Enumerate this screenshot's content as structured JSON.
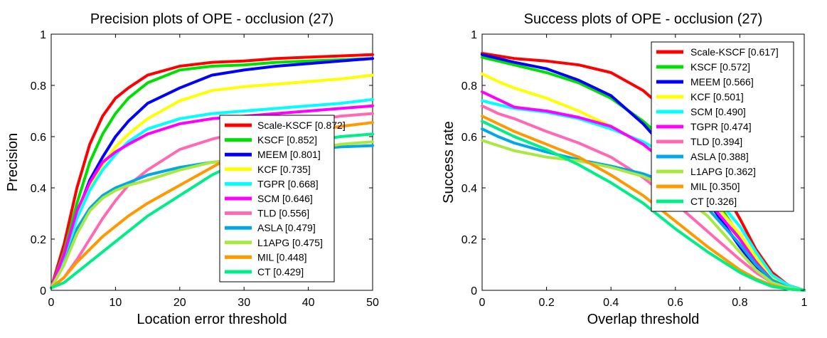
{
  "chart_data": [
    {
      "type": "line",
      "title": "Precision plots of OPE - occlusion (27)",
      "xlabel": "Location error threshold",
      "ylabel": "Precision",
      "xlim": [
        0,
        50
      ],
      "ylim": [
        0,
        1
      ],
      "xticks": [
        0,
        10,
        20,
        30,
        40,
        50
      ],
      "yticks": [
        0,
        0.2,
        0.4,
        0.6,
        0.8,
        1
      ],
      "x": [
        0,
        2,
        4,
        6,
        8,
        10,
        12,
        15,
        20,
        25,
        30,
        35,
        40,
        45,
        50
      ],
      "legend_position": "middle-right",
      "grid": false,
      "series": [
        {
          "name": "Scale-KSCF [0.872]",
          "color": "#ff0000",
          "values": [
            0.01,
            0.18,
            0.4,
            0.57,
            0.68,
            0.75,
            0.79,
            0.84,
            0.875,
            0.89,
            0.895,
            0.905,
            0.91,
            0.915,
            0.92
          ]
        },
        {
          "name": "KSCF [0.852]",
          "color": "#00e000",
          "values": [
            0.01,
            0.15,
            0.34,
            0.5,
            0.61,
            0.69,
            0.75,
            0.81,
            0.86,
            0.875,
            0.88,
            0.89,
            0.895,
            0.9,
            0.905
          ]
        },
        {
          "name": "MEEM [0.801]",
          "color": "#0000ff",
          "values": [
            0.01,
            0.14,
            0.3,
            0.43,
            0.52,
            0.6,
            0.66,
            0.73,
            0.79,
            0.84,
            0.86,
            0.875,
            0.885,
            0.895,
            0.905
          ]
        },
        {
          "name": "KCF [0.735]",
          "color": "#ffff00",
          "values": [
            0.01,
            0.14,
            0.3,
            0.41,
            0.49,
            0.56,
            0.61,
            0.67,
            0.74,
            0.78,
            0.795,
            0.805,
            0.815,
            0.825,
            0.84
          ]
        },
        {
          "name": "TGPR [0.668]",
          "color": "#00ffff",
          "values": [
            0.01,
            0.13,
            0.28,
            0.39,
            0.47,
            0.53,
            0.58,
            0.63,
            0.67,
            0.69,
            0.7,
            0.71,
            0.72,
            0.73,
            0.745
          ]
        },
        {
          "name": "SCM [0.646]",
          "color": "#ff00ff",
          "values": [
            0.01,
            0.14,
            0.31,
            0.42,
            0.5,
            0.54,
            0.57,
            0.61,
            0.65,
            0.67,
            0.68,
            0.69,
            0.7,
            0.71,
            0.72
          ]
        },
        {
          "name": "TLD [0.556]",
          "color": "#ff69b4",
          "values": [
            0.01,
            0.05,
            0.12,
            0.2,
            0.28,
            0.35,
            0.41,
            0.47,
            0.55,
            0.59,
            0.62,
            0.64,
            0.66,
            0.68,
            0.69
          ]
        },
        {
          "name": "ASLA [0.479]",
          "color": "#00a8e8",
          "values": [
            0.01,
            0.1,
            0.24,
            0.32,
            0.37,
            0.4,
            0.42,
            0.45,
            0.48,
            0.5,
            0.51,
            0.53,
            0.55,
            0.56,
            0.565
          ]
        },
        {
          "name": "L1APG [0.475]",
          "color": "#a8e840",
          "values": [
            0.01,
            0.1,
            0.22,
            0.31,
            0.36,
            0.39,
            0.41,
            0.43,
            0.47,
            0.5,
            0.51,
            0.53,
            0.55,
            0.57,
            0.58
          ]
        },
        {
          "name": "MIL [0.448]",
          "color": "#ff9900",
          "values": [
            0.01,
            0.05,
            0.11,
            0.16,
            0.21,
            0.25,
            0.29,
            0.34,
            0.41,
            0.48,
            0.55,
            0.59,
            0.62,
            0.64,
            0.655
          ]
        },
        {
          "name": "CT [0.429]",
          "color": "#00ee88",
          "values": [
            0.01,
            0.03,
            0.07,
            0.11,
            0.15,
            0.19,
            0.23,
            0.29,
            0.37,
            0.45,
            0.51,
            0.55,
            0.58,
            0.6,
            0.61
          ]
        }
      ]
    },
    {
      "type": "line",
      "title": "Success plots of OPE - occlusion (27)",
      "xlabel": "Overlap threshold",
      "ylabel": "Success rate",
      "xlim": [
        0,
        1
      ],
      "ylim": [
        0,
        1
      ],
      "xticks": [
        0,
        0.2,
        0.4,
        0.6,
        0.8,
        1
      ],
      "yticks": [
        0,
        0.2,
        0.4,
        0.6,
        0.8,
        1
      ],
      "x": [
        0,
        0.05,
        0.1,
        0.2,
        0.3,
        0.4,
        0.5,
        0.6,
        0.7,
        0.8,
        0.85,
        0.9,
        0.95,
        1.0
      ],
      "legend_position": "top-right",
      "grid": false,
      "series": [
        {
          "name": "Scale-KSCF [0.617]",
          "color": "#ff0000",
          "values": [
            0.925,
            0.915,
            0.905,
            0.895,
            0.88,
            0.85,
            0.78,
            0.67,
            0.5,
            0.28,
            0.16,
            0.07,
            0.02,
            0.0
          ]
        },
        {
          "name": "KSCF [0.572]",
          "color": "#00e000",
          "values": [
            0.91,
            0.895,
            0.88,
            0.85,
            0.81,
            0.75,
            0.66,
            0.55,
            0.4,
            0.21,
            0.12,
            0.05,
            0.015,
            0.0
          ]
        },
        {
          "name": "MEEM [0.566]",
          "color": "#0000ff",
          "values": [
            0.92,
            0.905,
            0.89,
            0.865,
            0.82,
            0.76,
            0.65,
            0.51,
            0.35,
            0.17,
            0.09,
            0.035,
            0.01,
            0.0
          ]
        },
        {
          "name": "KCF [0.501]",
          "color": "#ffff00",
          "values": [
            0.845,
            0.815,
            0.79,
            0.75,
            0.7,
            0.64,
            0.57,
            0.48,
            0.37,
            0.22,
            0.13,
            0.05,
            0.015,
            0.0
          ]
        },
        {
          "name": "SCM [0.490]",
          "color": "#00ffff",
          "values": [
            0.74,
            0.725,
            0.71,
            0.695,
            0.67,
            0.63,
            0.58,
            0.51,
            0.4,
            0.25,
            0.15,
            0.06,
            0.02,
            0.0
          ]
        },
        {
          "name": "TGPR [0.474]",
          "color": "#ff00ff",
          "values": [
            0.775,
            0.745,
            0.715,
            0.7,
            0.675,
            0.64,
            0.57,
            0.47,
            0.35,
            0.2,
            0.11,
            0.04,
            0.01,
            0.0
          ]
        },
        {
          "name": "TLD [0.394]",
          "color": "#ff69b4",
          "values": [
            0.72,
            0.69,
            0.67,
            0.62,
            0.575,
            0.52,
            0.44,
            0.34,
            0.23,
            0.12,
            0.07,
            0.03,
            0.01,
            0.0
          ]
        },
        {
          "name": "ASLA [0.388]",
          "color": "#00a8e8",
          "values": [
            0.63,
            0.6,
            0.575,
            0.54,
            0.51,
            0.485,
            0.455,
            0.41,
            0.32,
            0.18,
            0.1,
            0.04,
            0.01,
            0.0
          ]
        },
        {
          "name": "L1APG [0.362]",
          "color": "#a8e840",
          "values": [
            0.585,
            0.565,
            0.545,
            0.52,
            0.505,
            0.48,
            0.445,
            0.39,
            0.29,
            0.15,
            0.08,
            0.03,
            0.01,
            0.0
          ]
        },
        {
          "name": "MIL [0.350]",
          "color": "#ff9900",
          "values": [
            0.68,
            0.65,
            0.62,
            0.57,
            0.52,
            0.45,
            0.37,
            0.27,
            0.17,
            0.08,
            0.045,
            0.02,
            0.005,
            0.0
          ]
        },
        {
          "name": "CT [0.326]",
          "color": "#00ee88",
          "values": [
            0.66,
            0.63,
            0.6,
            0.55,
            0.49,
            0.42,
            0.34,
            0.24,
            0.15,
            0.07,
            0.04,
            0.015,
            0.005,
            0.0
          ]
        }
      ]
    }
  ]
}
